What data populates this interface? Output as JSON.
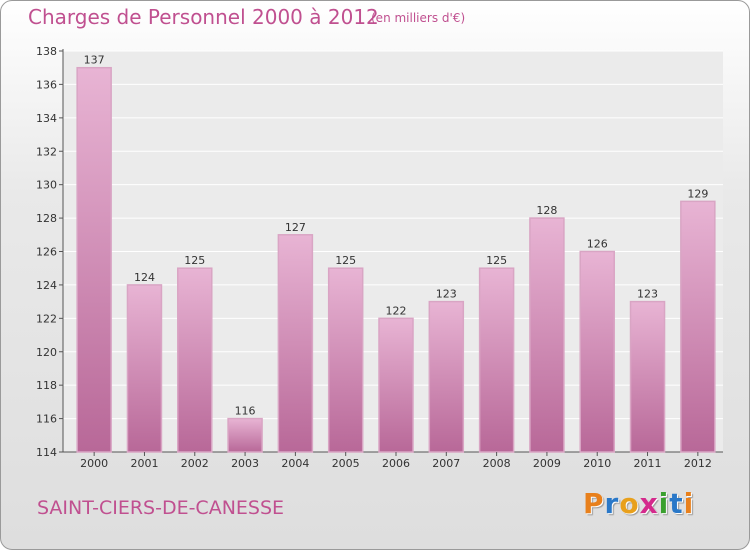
{
  "title": "Charges de Personnel 2000 à 2012",
  "subtitle": "(en milliers d'€)",
  "commune": "SAINT-CIERS-DE-CANESSE",
  "logo": {
    "letters": [
      "P",
      "r",
      "o",
      "x",
      "i",
      "t",
      "i"
    ],
    "colors": [
      "#e8801c",
      "#2a78c8",
      "#e8a01c",
      "#d42a8c",
      "#3aa02e",
      "#2a78c8",
      "#e8801c"
    ]
  },
  "colors": {
    "bar_light": "#e8b4d4",
    "bar_dark": "#b86898",
    "text": "#c05090"
  },
  "chart_data": {
    "type": "bar",
    "categories": [
      "2000",
      "2001",
      "2002",
      "2003",
      "2004",
      "2005",
      "2006",
      "2007",
      "2008",
      "2009",
      "2010",
      "2011",
      "2012"
    ],
    "values": [
      137,
      124,
      125,
      116,
      127,
      125,
      122,
      123,
      125,
      128,
      126,
      123,
      129
    ],
    "ylim": [
      114,
      138
    ],
    "yticks": [
      114,
      116,
      118,
      120,
      122,
      124,
      126,
      128,
      130,
      132,
      134,
      136,
      138
    ],
    "grid": "horizontal",
    "legend": "none"
  }
}
